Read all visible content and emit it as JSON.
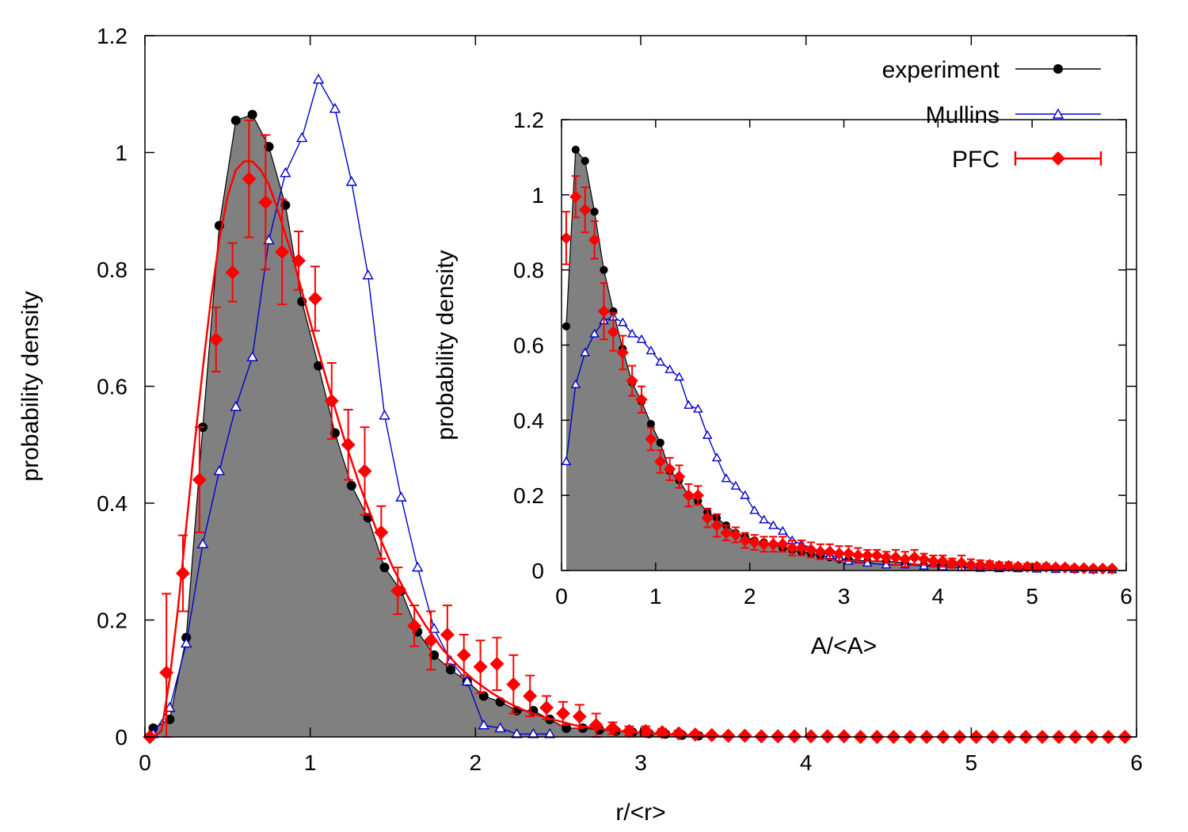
{
  "chart_data": [
    {
      "id": "main",
      "type": "line",
      "xlabel": "r/<r>",
      "ylabel": "probability density",
      "xlim": [
        0,
        6
      ],
      "ylim": [
        0,
        1.2
      ],
      "xticks": [
        "0",
        "1",
        "2",
        "3",
        "4",
        "5",
        "6"
      ],
      "yticks": [
        "0",
        "0.2",
        "0.4",
        "0.6",
        "0.8",
        "1",
        "1.2"
      ],
      "grid": false,
      "series": [
        {
          "name": "experiment",
          "style": "filled-area-with-dots",
          "color": "#000000",
          "fill": "#808080",
          "x": [
            0.05,
            0.15,
            0.25,
            0.35,
            0.45,
            0.55,
            0.65,
            0.75,
            0.85,
            0.95,
            1.05,
            1.15,
            1.25,
            1.35,
            1.45,
            1.55,
            1.65,
            1.75,
            1.85,
            1.95,
            2.05,
            2.15,
            2.25,
            2.35,
            2.45,
            2.55,
            2.65,
            2.75,
            2.85,
            2.95,
            3.05,
            3.15,
            3.25,
            3.35
          ],
          "y": [
            0.015,
            0.03,
            0.17,
            0.53,
            0.875,
            1.055,
            1.065,
            1.01,
            0.91,
            0.745,
            0.635,
            0.52,
            0.43,
            0.375,
            0.29,
            0.25,
            0.18,
            0.14,
            0.115,
            0.095,
            0.07,
            0.06,
            0.045,
            0.045,
            0.03,
            0.015,
            0.015,
            0.012,
            0.01,
            0.008,
            0.006,
            0.005,
            0.003,
            0.002
          ]
        },
        {
          "name": "Mullins",
          "style": "line-open-triangles",
          "color": "#0000cc",
          "x": [
            0.05,
            0.15,
            0.25,
            0.35,
            0.45,
            0.55,
            0.65,
            0.75,
            0.85,
            0.95,
            1.05,
            1.15,
            1.25,
            1.35,
            1.45,
            1.55,
            1.65,
            1.75,
            1.85,
            1.95,
            2.05,
            2.15,
            2.25,
            2.35,
            2.45
          ],
          "y": [
            0.005,
            0.05,
            0.16,
            0.33,
            0.455,
            0.565,
            0.65,
            0.85,
            0.965,
            1.025,
            1.125,
            1.075,
            0.95,
            0.79,
            0.55,
            0.41,
            0.29,
            0.185,
            0.13,
            0.095,
            0.02,
            0.015,
            0.005,
            0.005,
            0.005
          ]
        },
        {
          "name": "PFC",
          "style": "diamonds-with-errorbars",
          "color": "#ff0000",
          "x": [
            0.03,
            0.13,
            0.23,
            0.33,
            0.43,
            0.53,
            0.63,
            0.73,
            0.83,
            0.93,
            1.03,
            1.13,
            1.23,
            1.33,
            1.43,
            1.53,
            1.63,
            1.73,
            1.83,
            1.93,
            2.03,
            2.13,
            2.23,
            2.33,
            2.43,
            2.53,
            2.63,
            2.73,
            2.83,
            2.93,
            3.03,
            3.13,
            3.23,
            3.33,
            3.43,
            3.53,
            3.63,
            3.73,
            3.83,
            3.93,
            4.03,
            4.13,
            4.23,
            4.33,
            4.43,
            4.53,
            4.63,
            4.73,
            4.83,
            4.93,
            5.03,
            5.13,
            5.23,
            5.33,
            5.43,
            5.53,
            5.63,
            5.73,
            5.83,
            5.93
          ],
          "y": [
            0.0,
            0.11,
            0.28,
            0.44,
            0.68,
            0.795,
            0.955,
            0.915,
            0.83,
            0.815,
            0.75,
            0.575,
            0.5,
            0.455,
            0.35,
            0.25,
            0.19,
            0.165,
            0.175,
            0.14,
            0.12,
            0.125,
            0.09,
            0.07,
            0.05,
            0.04,
            0.035,
            0.02,
            0.015,
            0.01,
            0.01,
            0.008,
            0.006,
            0.004,
            0.003,
            0.002,
            0.002,
            0.001,
            0.001,
            0.001,
            0.001,
            0.001,
            0.001,
            0.0,
            0.0,
            0.0,
            0.0,
            0.0,
            0.0,
            0.0,
            0.0,
            0.0,
            0.0,
            0.0,
            0.0,
            0.0,
            0.0,
            0.0,
            0.0,
            0.0
          ],
          "err": [
            0.0,
            0.135,
            0.065,
            0.09,
            0.055,
            0.05,
            0.1,
            0.115,
            0.09,
            0.05,
            0.055,
            0.065,
            0.06,
            0.075,
            0.045,
            0.04,
            0.035,
            0.05,
            0.05,
            0.035,
            0.045,
            0.045,
            0.05,
            0.035,
            0.02,
            0.02,
            0.02,
            0.02,
            0.01,
            0.008,
            0.008,
            0.006,
            0.005,
            0.004,
            0.0,
            0.0,
            0.0,
            0.0,
            0.0,
            0.0,
            0.0,
            0.0,
            0.0,
            0.0,
            0.0,
            0.0,
            0.0,
            0.0,
            0.0,
            0.0,
            0.0,
            0.0,
            0.0,
            0.0,
            0.0,
            0.0,
            0.0,
            0.0,
            0.0,
            0.0
          ]
        },
        {
          "name": "",
          "style": "smooth-fit-curve",
          "color": "#ff0000",
          "x": [
            0.05,
            0.1,
            0.15,
            0.2,
            0.25,
            0.3,
            0.35,
            0.4,
            0.45,
            0.5,
            0.55,
            0.6,
            0.65,
            0.7,
            0.75,
            0.8,
            0.9,
            1.0,
            1.1,
            1.2,
            1.3,
            1.4,
            1.5,
            1.6,
            1.7,
            1.8,
            1.9,
            2.0,
            2.1,
            2.2,
            2.3,
            2.4,
            2.6,
            2.8,
            3.0,
            3.2,
            3.5
          ],
          "y": [
            0.0,
            0.01,
            0.1,
            0.22,
            0.36,
            0.5,
            0.63,
            0.75,
            0.85,
            0.925,
            0.97,
            0.985,
            0.985,
            0.97,
            0.945,
            0.905,
            0.815,
            0.71,
            0.61,
            0.515,
            0.43,
            0.355,
            0.29,
            0.235,
            0.19,
            0.15,
            0.12,
            0.095,
            0.075,
            0.058,
            0.045,
            0.035,
            0.02,
            0.012,
            0.007,
            0.004,
            0.001
          ]
        }
      ]
    },
    {
      "id": "inset",
      "type": "line",
      "xlabel": "A/<A>",
      "ylabel": "probability density",
      "xlim": [
        0,
        6
      ],
      "ylim": [
        0,
        1.2
      ],
      "xticks": [
        "0",
        "1",
        "2",
        "3",
        "4",
        "5",
        "6"
      ],
      "yticks": [
        "0",
        "0.2",
        "0.4",
        "0.6",
        "0.8",
        "1",
        "1.2"
      ],
      "grid": false,
      "series": [
        {
          "name": "experiment",
          "style": "filled-area-with-dots",
          "color": "#000000",
          "fill": "#808080",
          "x": [
            0.05,
            0.15,
            0.25,
            0.35,
            0.45,
            0.55,
            0.65,
            0.75,
            0.85,
            0.95,
            1.05,
            1.15,
            1.25,
            1.35,
            1.45,
            1.55,
            1.65,
            1.75,
            1.85,
            1.95,
            2.05,
            2.15,
            2.25,
            2.35,
            2.45,
            2.55,
            2.65,
            2.75,
            2.85,
            2.95,
            3.05,
            3.25,
            3.45,
            3.65,
            3.85,
            4.05,
            4.25,
            4.45,
            4.65,
            4.85,
            5.05,
            5.25,
            5.45,
            5.65,
            5.85
          ],
          "y": [
            0.65,
            1.12,
            1.09,
            0.955,
            0.8,
            0.69,
            0.59,
            0.5,
            0.45,
            0.39,
            0.34,
            0.265,
            0.24,
            0.2,
            0.185,
            0.155,
            0.14,
            0.12,
            0.1,
            0.09,
            0.08,
            0.075,
            0.07,
            0.06,
            0.055,
            0.05,
            0.045,
            0.04,
            0.035,
            0.03,
            0.03,
            0.025,
            0.025,
            0.02,
            0.015,
            0.015,
            0.015,
            0.012,
            0.01,
            0.01,
            0.008,
            0.008,
            0.006,
            0.006,
            0.006
          ]
        },
        {
          "name": "Mullins",
          "style": "line-open-triangles",
          "color": "#0000cc",
          "x": [
            0.05,
            0.15,
            0.25,
            0.35,
            0.45,
            0.55,
            0.65,
            0.75,
            0.85,
            0.95,
            1.05,
            1.15,
            1.25,
            1.35,
            1.45,
            1.55,
            1.65,
            1.75,
            1.85,
            1.95,
            2.05,
            2.15,
            2.25,
            2.35,
            2.45,
            2.55,
            2.65,
            2.75,
            2.85,
            2.95,
            3.05,
            3.25,
            3.45,
            3.65,
            3.85,
            4.05,
            4.25,
            4.45,
            4.65,
            4.85,
            5.05,
            5.25,
            5.45,
            5.65,
            5.85
          ],
          "y": [
            0.29,
            0.495,
            0.58,
            0.63,
            0.665,
            0.675,
            0.66,
            0.63,
            0.615,
            0.585,
            0.555,
            0.535,
            0.515,
            0.44,
            0.43,
            0.36,
            0.3,
            0.245,
            0.225,
            0.2,
            0.16,
            0.135,
            0.12,
            0.105,
            0.08,
            0.07,
            0.06,
            0.05,
            0.04,
            0.035,
            0.025,
            0.02,
            0.015,
            0.015,
            0.012,
            0.01,
            0.008,
            0.006,
            0.005,
            0.005,
            0.004,
            0.003,
            0.003,
            0.002,
            0.002
          ]
        },
        {
          "name": "PFC",
          "style": "diamonds-with-errorbars",
          "color": "#ff0000",
          "x": [
            0.05,
            0.15,
            0.25,
            0.35,
            0.45,
            0.55,
            0.65,
            0.75,
            0.85,
            0.95,
            1.05,
            1.15,
            1.25,
            1.35,
            1.45,
            1.55,
            1.65,
            1.75,
            1.85,
            1.95,
            2.05,
            2.15,
            2.25,
            2.35,
            2.45,
            2.55,
            2.65,
            2.75,
            2.85,
            2.95,
            3.05,
            3.15,
            3.25,
            3.35,
            3.45,
            3.55,
            3.65,
            3.75,
            3.85,
            3.95,
            4.05,
            4.15,
            4.25,
            4.35,
            4.45,
            4.55,
            4.65,
            4.75,
            4.85,
            4.95,
            5.05,
            5.15,
            5.25,
            5.35,
            5.45,
            5.55,
            5.65,
            5.75,
            5.85
          ],
          "y": [
            0.885,
            0.995,
            0.96,
            0.88,
            0.69,
            0.635,
            0.58,
            0.505,
            0.455,
            0.35,
            0.29,
            0.27,
            0.25,
            0.2,
            0.2,
            0.14,
            0.12,
            0.1,
            0.095,
            0.08,
            0.075,
            0.07,
            0.07,
            0.07,
            0.06,
            0.06,
            0.055,
            0.05,
            0.05,
            0.045,
            0.045,
            0.04,
            0.04,
            0.04,
            0.035,
            0.035,
            0.03,
            0.035,
            0.03,
            0.025,
            0.025,
            0.02,
            0.02,
            0.015,
            0.015,
            0.015,
            0.012,
            0.012,
            0.01,
            0.01,
            0.01,
            0.01,
            0.008,
            0.008,
            0.006,
            0.006,
            0.005,
            0.005,
            0.005
          ],
          "err": [
            0.07,
            0.055,
            0.06,
            0.05,
            0.075,
            0.05,
            0.045,
            0.04,
            0.035,
            0.03,
            0.03,
            0.03,
            0.03,
            0.03,
            0.025,
            0.025,
            0.03,
            0.02,
            0.02,
            0.02,
            0.02,
            0.02,
            0.02,
            0.02,
            0.02,
            0.02,
            0.02,
            0.02,
            0.02,
            0.02,
            0.02,
            0.02,
            0.015,
            0.015,
            0.015,
            0.02,
            0.02,
            0.02,
            0.015,
            0.015,
            0.015,
            0.012,
            0.02,
            0.015,
            0.012,
            0.01,
            0.01,
            0.01,
            0.008,
            0.008,
            0.008,
            0.008,
            0.006,
            0.006,
            0.006,
            0.005,
            0.005,
            0.005,
            0.005
          ]
        }
      ]
    }
  ],
  "legend": {
    "placement": "top-right",
    "items": [
      {
        "label": "experiment",
        "color": "#000000",
        "marker": "filled-circle"
      },
      {
        "label": "Mullins",
        "color": "#0000cc",
        "marker": "open-triangle"
      },
      {
        "label": "PFC",
        "color": "#ff0000",
        "marker": "filled-diamond-errorbar"
      }
    ]
  }
}
